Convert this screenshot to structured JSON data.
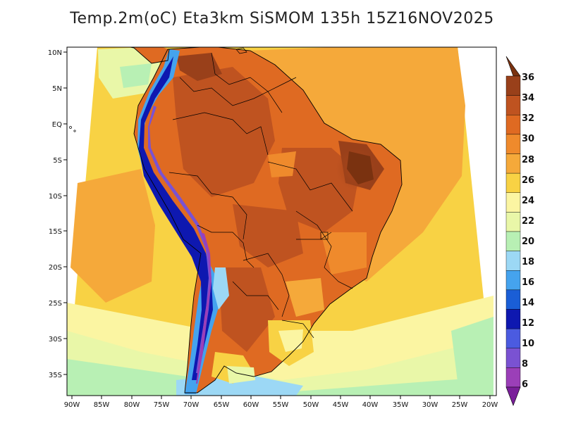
{
  "title": "Temp.2m(oC) Eta3km SiSMOM 135h 15Z16NOV2025",
  "map": {
    "lat_ticks": [
      "10N",
      "5N",
      "EQ",
      "5S",
      "10S",
      "15S",
      "20S",
      "25S",
      "30S",
      "35S"
    ],
    "lon_ticks": [
      "90W",
      "85W",
      "80W",
      "75W",
      "70W",
      "65W",
      "60W",
      "55W",
      "50W",
      "45W",
      "40W",
      "35W",
      "30W",
      "25W",
      "20W"
    ]
  },
  "colorbar": {
    "labels": [
      "36",
      "34",
      "32",
      "30",
      "28",
      "26",
      "24",
      "22",
      "20",
      "18",
      "16",
      "14",
      "12",
      "10",
      "8",
      "6"
    ],
    "colors": [
      "#7a3210",
      "#99401a",
      "#bf5320",
      "#df6a22",
      "#ef8a2c",
      "#f5a93a",
      "#f8d244",
      "#fbf5a2",
      "#e9f7a8",
      "#b8f0b4",
      "#9cd8f5",
      "#45a3ee",
      "#1a5ed6",
      "#0e18b0",
      "#4b5be0",
      "#7a52d2",
      "#9b3fb8",
      "#7a1f9a"
    ]
  }
}
